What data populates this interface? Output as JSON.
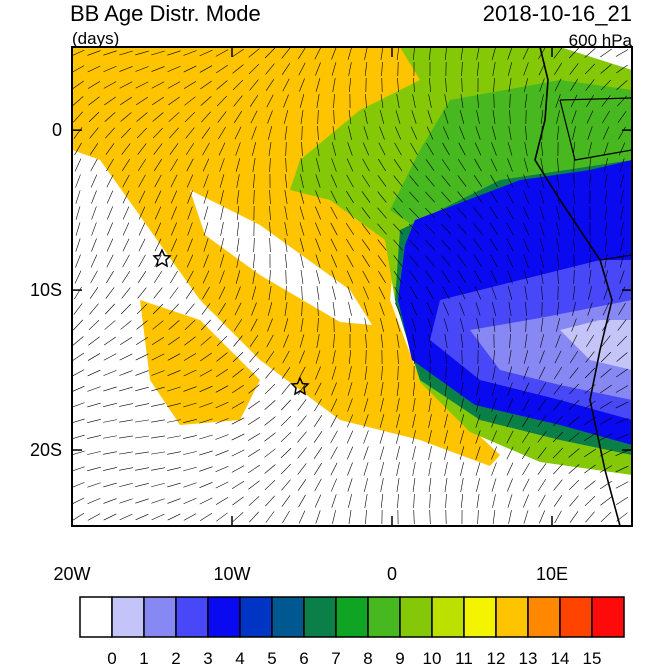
{
  "header": {
    "title": "BB Age Distr. Mode",
    "units": "(days)",
    "time": "2018-10-16_21",
    "level": "600 hPa"
  },
  "map": {
    "xlim": [
      -20,
      15
    ],
    "ylim": [
      -24.75,
      5.2
    ],
    "xticks": [
      {
        "value": -20,
        "label": "20W"
      },
      {
        "value": -10,
        "label": "10W"
      },
      0,
      {
        "value": 10,
        "label": "10E"
      }
    ],
    "yticks": [
      0,
      {
        "value": -10,
        "label": "10S"
      },
      {
        "value": -20,
        "label": "20S"
      }
    ]
  },
  "colorbar": {
    "levels": [
      0,
      1,
      2,
      3,
      4,
      5,
      6,
      7,
      8,
      9,
      10,
      11,
      12,
      13,
      14,
      15
    ],
    "colors": [
      "#ffffff",
      "#c4c4f8",
      "#8888f4",
      "#4848f8",
      "#0a0af0",
      "#0034c4",
      "#005890",
      "#0a8048",
      "#10a424",
      "#48b820",
      "#84c808",
      "#bce000",
      "#f4f400",
      "#ffc400",
      "#ff8800",
      "#ff4400",
      "#ff0a0a"
    ]
  }
}
